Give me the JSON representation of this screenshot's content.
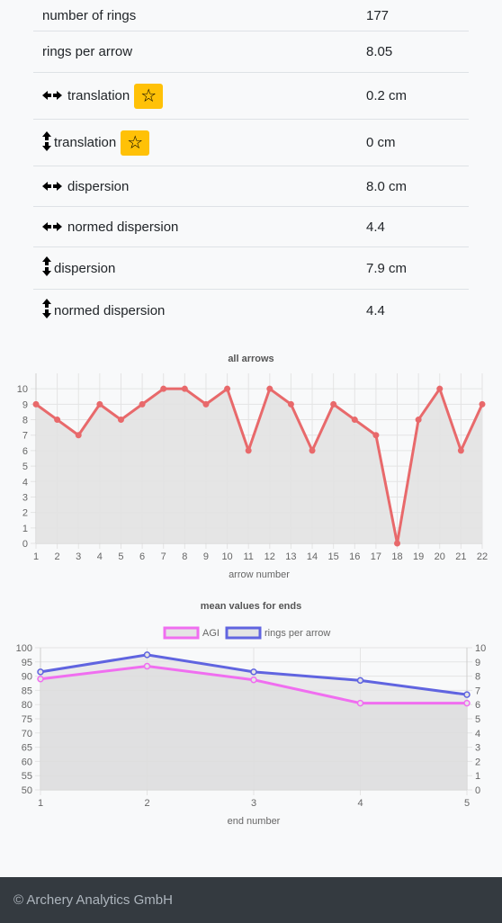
{
  "stats": [
    {
      "icon": "horizontal",
      "label": "number of rings",
      "value": "177",
      "star": false
    },
    {
      "icon": "horizontal",
      "label": "rings per arrow",
      "value": "8.05",
      "star": false
    },
    {
      "icon": "horizontal",
      "label": "translation",
      "value": "0.2 cm",
      "star": true
    },
    {
      "icon": "vertical",
      "label": "translation",
      "value": "0 cm",
      "star": true
    },
    {
      "icon": "horizontal",
      "label": "dispersion",
      "value": "8.0 cm",
      "star": false
    },
    {
      "icon": "horizontal",
      "label": "normed dispersion",
      "value": "4.4",
      "star": false
    },
    {
      "icon": "vertical",
      "label": "dispersion",
      "value": "7.9 cm",
      "star": false
    },
    {
      "icon": "vertical",
      "label": "normed dispersion",
      "value": "4.4",
      "star": false
    }
  ],
  "star_glyph": "☆",
  "arrow_glyphs": {
    "horizontal": "⬅➡",
    "vertical": "⬆⬇"
  },
  "chart_data": [
    {
      "type": "line",
      "title": "all arrows",
      "xlabel": "arrow number",
      "ylabel": "",
      "x": [
        1,
        2,
        3,
        4,
        5,
        6,
        7,
        8,
        9,
        10,
        11,
        12,
        13,
        14,
        15,
        16,
        17,
        18,
        19,
        20,
        21,
        22
      ],
      "series": [
        {
          "values": [
            9,
            8,
            7,
            9,
            8,
            9,
            10,
            10,
            9,
            10,
            6,
            10,
            9,
            6,
            9,
            8,
            7,
            0,
            8,
            10,
            6,
            9
          ],
          "color": "#e8696b",
          "fill": "#e2e2e2"
        }
      ],
      "ylim": [
        0,
        11
      ],
      "yticks": [
        0,
        1,
        2,
        3,
        4,
        5,
        6,
        7,
        8,
        9,
        10
      ],
      "grid": true,
      "legend": "none"
    },
    {
      "type": "line",
      "title": "mean values for ends",
      "xlabel": "end number",
      "x": [
        1,
        2,
        3,
        4,
        5
      ],
      "series": [
        {
          "name": "AGI",
          "values": [
            89,
            93.5,
            88.7,
            80.5,
            80.5
          ],
          "axis": "left",
          "color": "#f06ef0"
        },
        {
          "name": "rings per arrow",
          "values": [
            8.3,
            9.5,
            8.3,
            7.7,
            6.7
          ],
          "axis": "right",
          "color": "#6064e0"
        }
      ],
      "ylim_left": [
        50,
        100
      ],
      "yticks_left": [
        50,
        55,
        60,
        65,
        70,
        75,
        80,
        85,
        90,
        95,
        100
      ],
      "ylim_right": [
        0,
        10
      ],
      "yticks_right": [
        0,
        1,
        2,
        3,
        4,
        5,
        6,
        7,
        8,
        9,
        10
      ],
      "grid": true,
      "legend": "top"
    }
  ],
  "footer": {
    "text": "© Archery Analytics GmbH"
  }
}
